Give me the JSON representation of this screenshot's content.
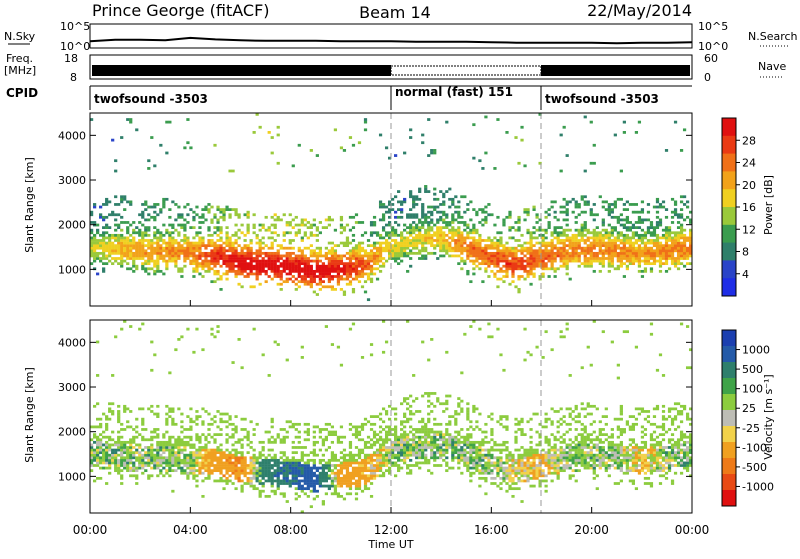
{
  "header": {
    "station": "Prince George (fitACF)",
    "beam": "Beam 14",
    "date": "22/May/2014"
  },
  "noise_panel": {
    "left_label": "N.Sky",
    "left_top_tick": "10^5",
    "left_bottom_tick": "10^0",
    "right_label": "N.Search",
    "right_top_tick": "10^5",
    "right_bottom_tick": "10^0"
  },
  "freq_panel": {
    "left_label_1": "Freq.",
    "left_label_2": "[MHz]",
    "left_top_tick": "18",
    "left_bottom_tick": "8",
    "right_label": "Nave",
    "right_top_tick": "60",
    "right_bottom_tick": "0"
  },
  "cpid_panel": {
    "label": "CPID",
    "segments": [
      {
        "name": "twofsound -3503",
        "start_hour": 0,
        "end_hour": 12
      },
      {
        "name": "normal (fast) 151",
        "start_hour": 12,
        "end_hour": 18
      },
      {
        "name": "twofsound -3503",
        "start_hour": 18,
        "end_hour": 24
      }
    ]
  },
  "power_panel": {
    "ylabel": "Slant Range [km]",
    "yticks": [
      "1000",
      "2000",
      "3000",
      "4000"
    ],
    "colorbar_label": "Power [dB]",
    "colorbar_ticks": [
      "4",
      "8",
      "12",
      "16",
      "20",
      "24",
      "28"
    ],
    "colorbar_colors": [
      "#1f2ee6",
      "#2a44c8",
      "#2f7f6a",
      "#3a9c4e",
      "#9ac93a",
      "#f0d020",
      "#f2a21a",
      "#f07018",
      "#ea3a14",
      "#e01010"
    ]
  },
  "velocity_panel": {
    "ylabel": "Slant Range [km]",
    "yticks": [
      "1000",
      "2000",
      "3000",
      "4000"
    ],
    "colorbar_label": "Velocity [m s⁻¹]",
    "colorbar_ticks": [
      "1000",
      "500",
      "100",
      "25",
      "-25",
      "-100",
      "-500",
      "-1000"
    ],
    "colorbar_colors": [
      "#1b3fb0",
      "#245aa8",
      "#2e7f6c",
      "#3fa348",
      "#8ccc3e",
      "#bdbdb5",
      "#f2d24a",
      "#f0a020",
      "#ee7a18",
      "#e84a14",
      "#e01010"
    ]
  },
  "x_axis": {
    "ticks": [
      "00:00",
      "04:00",
      "08:00",
      "12:00",
      "16:00",
      "20:00",
      "00:00"
    ],
    "label": "Time UT"
  },
  "chart_data": [
    {
      "type": "line",
      "title": "N.Sky",
      "x": [
        0,
        1,
        2,
        3,
        4,
        5,
        6,
        7,
        8,
        9,
        10,
        11,
        12,
        13,
        14,
        15,
        16,
        17,
        18,
        19,
        20,
        21,
        22,
        23,
        24
      ],
      "series": [
        {
          "name": "N.Sky",
          "values": [
            1.4,
            1.7,
            1.7,
            1.6,
            2.1,
            1.8,
            1.6,
            1.5,
            1.5,
            1.5,
            1.4,
            1.4,
            1.4,
            1.3,
            1.3,
            1.3,
            1.2,
            1.1,
            1.1,
            1.1,
            1.1,
            1.0,
            1.1,
            1.1,
            1.2
          ]
        }
      ],
      "ylim": [
        0,
        5
      ]
    },
    {
      "type": "heatmap",
      "title": "Power [dB]",
      "ylabel": "Slant Range [km]",
      "x": [
        0,
        1,
        2,
        3,
        4,
        5,
        6,
        7,
        8,
        9,
        10,
        11,
        12,
        13,
        14,
        15,
        16,
        17,
        18,
        19,
        20,
        21,
        22,
        23,
        24
      ],
      "band_center_km": [
        1500,
        1450,
        1400,
        1400,
        1350,
        1300,
        1150,
        1100,
        1050,
        950,
        1000,
        1100,
        1500,
        1650,
        1700,
        1500,
        1250,
        1100,
        1250,
        1400,
        1450,
        1400,
        1350,
        1400,
        1500
      ],
      "band_peak_power_db": [
        14,
        18,
        20,
        20,
        22,
        26,
        30,
        30,
        30,
        30,
        28,
        24,
        16,
        16,
        18,
        22,
        24,
        26,
        24,
        22,
        22,
        22,
        20,
        22,
        22
      ],
      "ylim": [
        180,
        4500
      ]
    },
    {
      "type": "heatmap",
      "title": "Velocity [m s⁻¹]",
      "ylabel": "Slant Range [km]",
      "x": [
        0,
        1,
        2,
        3,
        4,
        5,
        6,
        7,
        8,
        9,
        10,
        11,
        12,
        13,
        14,
        15,
        16,
        17,
        18,
        19,
        20,
        21,
        22,
        23,
        24
      ],
      "band_center_km": [
        1500,
        1450,
        1400,
        1400,
        1350,
        1300,
        1150,
        1100,
        1050,
        950,
        1000,
        1100,
        1500,
        1650,
        1700,
        1500,
        1250,
        1100,
        1250,
        1400,
        1450,
        1400,
        1350,
        1400,
        1500
      ],
      "band_velocity_ms": [
        0,
        0,
        0,
        0,
        0,
        -200,
        -300,
        200,
        300,
        400,
        -200,
        -150,
        0,
        0,
        0,
        0,
        0,
        -50,
        -100,
        0,
        0,
        0,
        -100,
        0,
        0
      ],
      "ylim": [
        180,
        4500
      ]
    }
  ]
}
